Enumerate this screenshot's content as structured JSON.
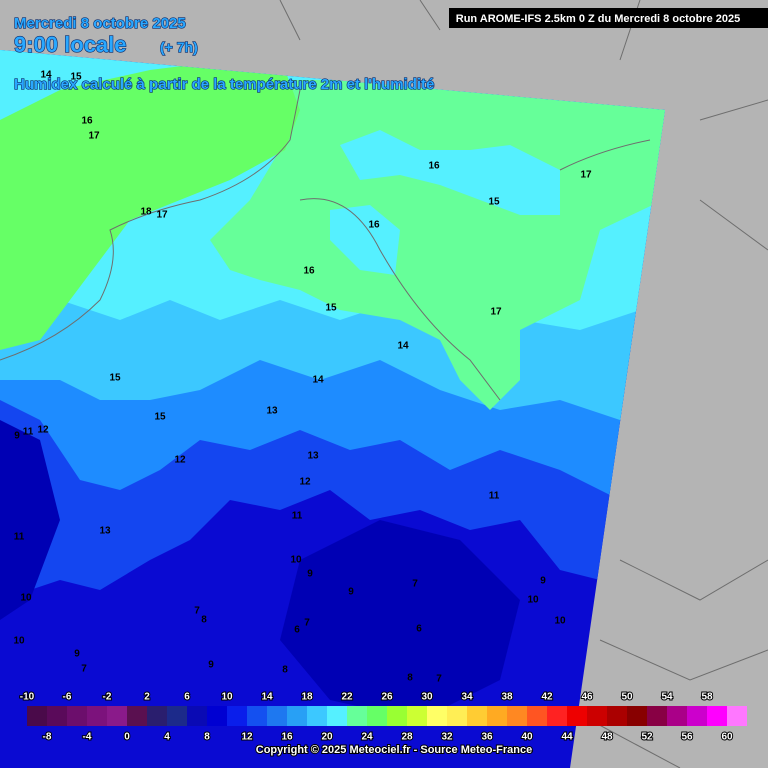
{
  "header": {
    "date": "Mercredi 8 octobre 2025",
    "time": "9:00 locale",
    "offset": "(+ 7h)",
    "subtitle": "Humidex calculé à partir de la température 2m et l'humidité"
  },
  "run": "Run AROME-IFS 2.5km 0 Z du Mercredi 8 octobre 2025",
  "contour_labels": [
    "14",
    "15",
    "16",
    "17",
    "18",
    "17",
    "16",
    "17",
    "15",
    "16",
    "16",
    "15",
    "17",
    "14",
    "15",
    "14",
    "15",
    "13",
    "9",
    "11",
    "12",
    "12",
    "13",
    "12",
    "11",
    "11",
    "13",
    "11",
    "10",
    "9",
    "9",
    "7",
    "10",
    "10",
    "7",
    "8",
    "9",
    "10",
    "6",
    "6",
    "7",
    "10",
    "9",
    "7",
    "9",
    "8",
    "8",
    "7"
  ],
  "legend": {
    "values": [
      -10,
      -8,
      -6,
      -4,
      -2,
      0,
      2,
      4,
      6,
      8,
      10,
      12,
      14,
      16,
      18,
      20,
      22,
      24,
      26,
      28,
      30,
      32,
      34,
      36,
      38,
      40,
      42,
      44,
      46,
      48,
      50,
      52,
      54,
      56,
      58,
      60
    ],
    "colors": [
      "#4a0a4a",
      "#5a0a5a",
      "#6c0e6c",
      "#7c127c",
      "#8a1a8a",
      "#5a1050",
      "#2a1e6e",
      "#1c2a8a",
      "#0a0ab4",
      "#0000d2",
      "#0a1eeb",
      "#1450f0",
      "#1e78f0",
      "#28a0f5",
      "#3cc8ff",
      "#55f0ff",
      "#66ff99",
      "#66ff66",
      "#99ff33",
      "#ccff33",
      "#ffff66",
      "#ffee55",
      "#ffcc33",
      "#ffaa22",
      "#ff8822",
      "#ff5522",
      "#ff2222",
      "#ee0000",
      "#cc0000",
      "#aa0000",
      "#880000",
      "#880044",
      "#aa0088",
      "#cc00cc",
      "#ff00ff",
      "#ff77ff"
    ]
  },
  "copyright": "Copyright © 2025 Meteociel.fr - Source Meteo-France"
}
